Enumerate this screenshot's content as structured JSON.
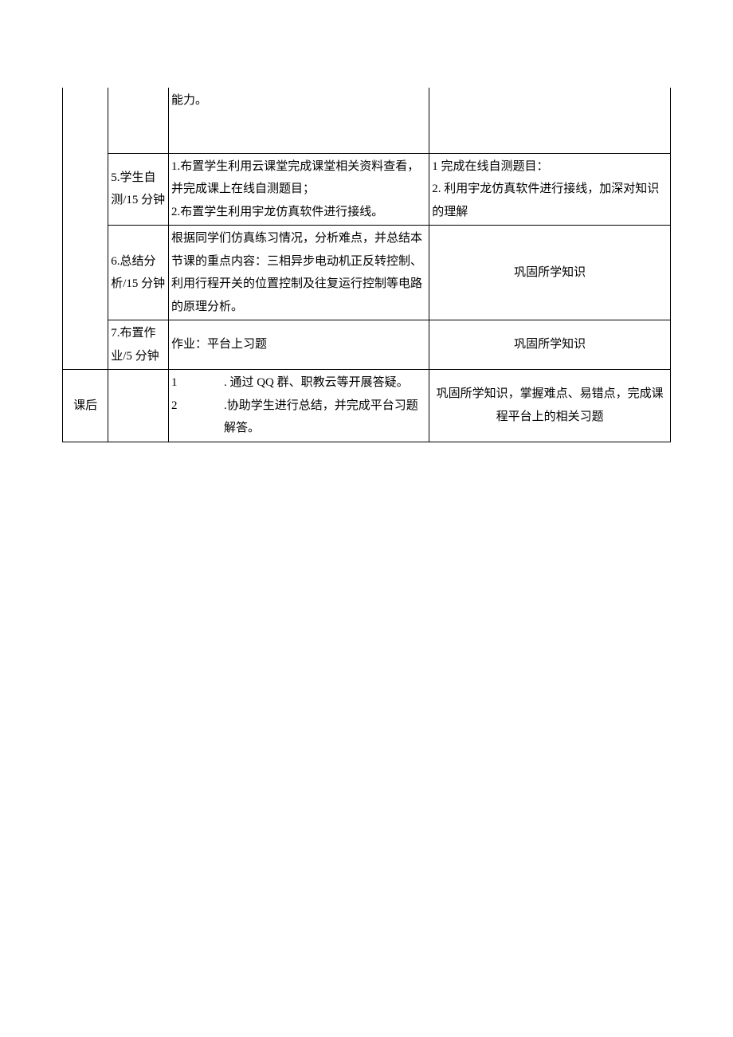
{
  "row1": {
    "col3": "能力。"
  },
  "row2": {
    "col2": "5.学生自测/15 分钟",
    "col3_line1": "1.布置学生利用云课堂完成课堂相关资料查看，并完成课上在线自测题目；",
    "col3_line2": "2.布置学生利用宇龙仿真软件进行接线。",
    "col4_line1": "1 完成在线自测题目：",
    "col4_line2": "2. 利用宇龙仿真软件进行接线，加深对知识的理解"
  },
  "row3": {
    "col2": "6.总结分析/15 分钟",
    "col3": "根据同学们仿真练习情况，分析难点，并总结本节课的重点内容：三相异步电动机正反转控制、利用行程开关的位置控制及往复运行控制等电路的原理分析。",
    "col4": "巩固所学知识"
  },
  "row4": {
    "col2": "7.布置作业/5 分钟",
    "col3": "作业：平台上习题",
    "col4": "巩固所学知识"
  },
  "row5": {
    "col1": "课后",
    "col3_n1": "1",
    "col3_t1": ". 通过 QQ 群、职教云等开展答疑。",
    "col3_n2": "2",
    "col3_t2": ".协助学生进行总结，并完成平台习题解答。",
    "col4": "巩固所学知识，掌握难点、易错点，完成课程平台上的相关习题"
  }
}
